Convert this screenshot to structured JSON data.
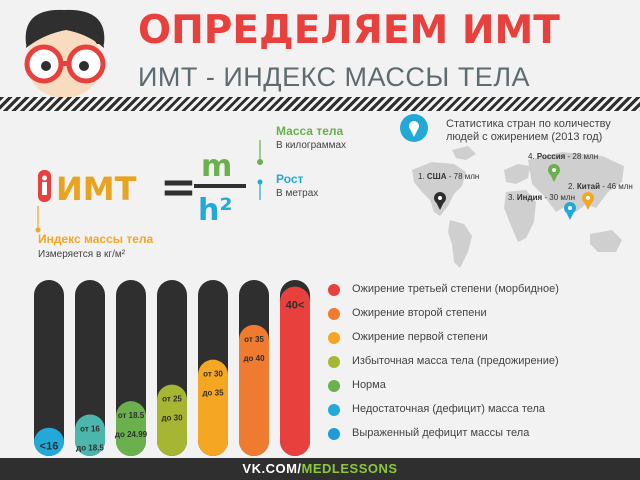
{
  "header": {
    "title": "ОПРЕДЕЛЯЕМ ИМТ",
    "subtitle": "ИМТ - ИНДЕКС МАССЫ ТЕЛА"
  },
  "formula": {
    "imt": "ИМТ",
    "equals": "=",
    "numerator": "m",
    "denominator": "h²",
    "mass_title": "Масса тела",
    "mass_sub": "В килограммах",
    "height_title": "Рост",
    "height_sub": "В метрах",
    "index_title": "Индекс массы тела",
    "index_sub": "Измеряется в кг/м²"
  },
  "stats": {
    "title": "Статистика стран по количеству людей с ожирением (2013 год)",
    "countries": [
      {
        "num": "1.",
        "name": "США",
        "value": "- 78 млн"
      },
      {
        "num": "2.",
        "name": "Китай",
        "value": "- 46 млн"
      },
      {
        "num": "3.",
        "name": "Индия",
        "value": "- 30 млн"
      },
      {
        "num": "4.",
        "name": "Россия",
        "value": "- 28 млн"
      }
    ]
  },
  "scale": {
    "bars": [
      {
        "top": "<16",
        "bottom": "",
        "color": "#23a9d8",
        "level": 0.11
      },
      {
        "top": "от 16",
        "bottom": "до 18.5",
        "color": "#4db6ac",
        "level": 0.19
      },
      {
        "top": "от 18.5",
        "bottom": "до 24.99",
        "color": "#6ab04c",
        "level": 0.27
      },
      {
        "top": "от 25",
        "bottom": "до 30",
        "color": "#a7b632",
        "level": 0.37
      },
      {
        "top": "от 30",
        "bottom": "до 35",
        "color": "#f5a623",
        "level": 0.52
      },
      {
        "top": "от 35",
        "bottom": "до 40",
        "color": "#ee7b30",
        "level": 0.73
      },
      {
        "top": "40<",
        "bottom": "",
        "color": "#e8403c",
        "level": 0.96
      }
    ],
    "legend": [
      {
        "label": "Ожирение третьей степени (морбидное)",
        "color": "#e8403c"
      },
      {
        "label": "Ожирение второй степени",
        "color": "#ee7b30"
      },
      {
        "label": "Ожирение первой степени",
        "color": "#f5a623"
      },
      {
        "label": "Избыточная масса тела (предожирение)",
        "color": "#a7b632"
      },
      {
        "label": "Норма",
        "color": "#6ab04c"
      },
      {
        "label": "Недостаточная (дефицит) масса тела",
        "color": "#23a9d8"
      },
      {
        "label": "Выраженный дефицит массы тела",
        "color": "#1e9bd7"
      }
    ]
  },
  "footer": {
    "site": "VK.COM/",
    "handle": "MEDLESSONS"
  },
  "colors": {
    "accent_red": "#e8403c",
    "accent_green": "#8cc63f",
    "accent_blue": "#23a9d8",
    "accent_orange": "#f5a623",
    "dark": "#2f2f2f"
  }
}
